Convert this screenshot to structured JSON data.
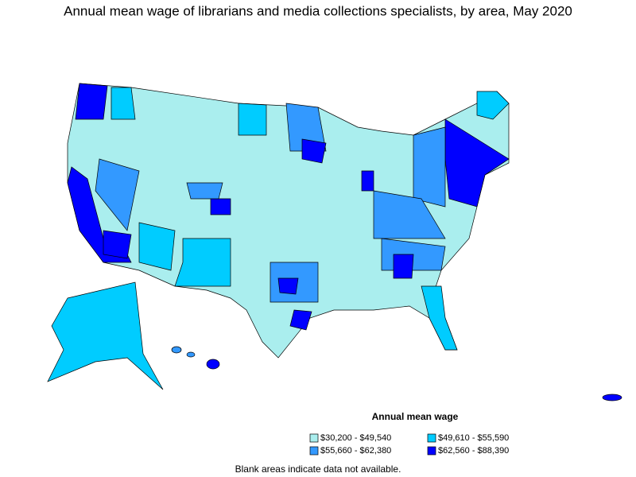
{
  "title": "Annual mean wage of librarians and media collections specialists, by area, May 2020",
  "legend": {
    "title": "Annual mean wage",
    "items": [
      {
        "label": "$30,200 - $49,540",
        "color": "#aaeeee"
      },
      {
        "label": "$49,610 - $55,590",
        "color": "#00ccff"
      },
      {
        "label": "$55,660 - $62,380",
        "color": "#3399ff"
      },
      {
        "label": "$62,560 - $88,390",
        "color": "#0000ff"
      }
    ]
  },
  "footnote": "Blank areas indicate data not available."
}
